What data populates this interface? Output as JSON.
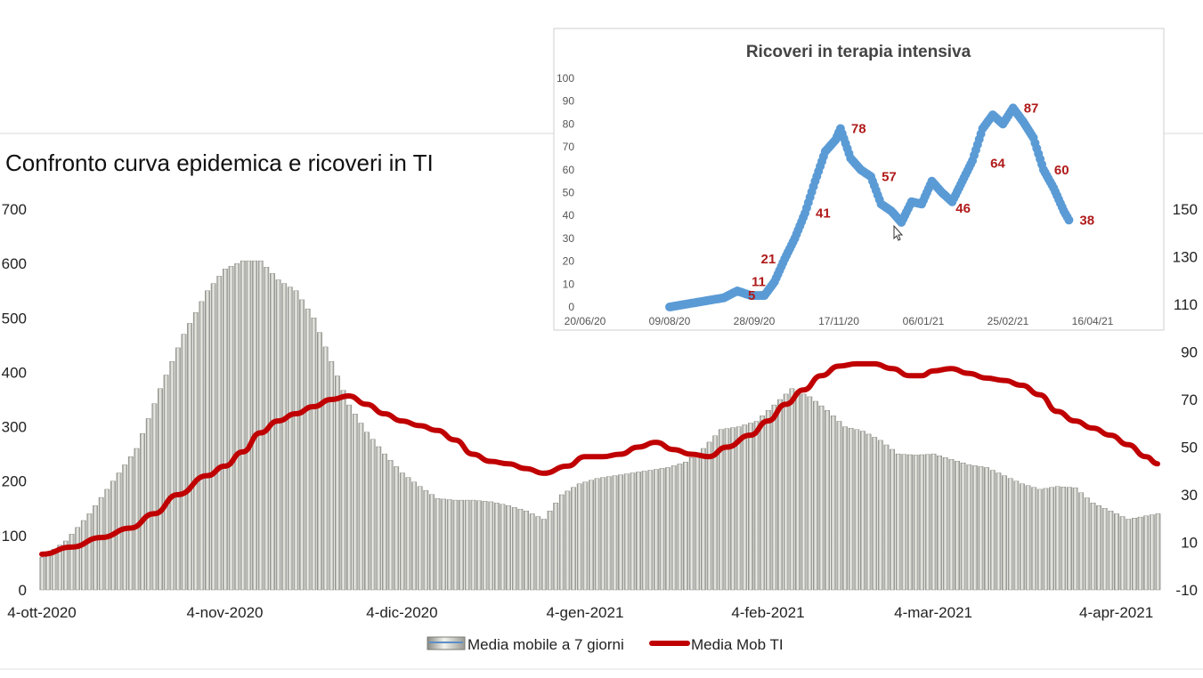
{
  "colors": {
    "bar_fill": "#c9c9c4",
    "bar_edge": "#7b7b75",
    "ti_line": "#c00000",
    "inset_points": "#5b9bd5",
    "inset_labels": "#b01a1a"
  },
  "chart_data": [
    {
      "type": "bar+line",
      "title": "Confronto curva epidemica e ricoveri in TI",
      "x_range": [
        "2020-10-04",
        "2021-04-11"
      ],
      "x_ticks": [
        {
          "date": "2020-10-04",
          "label": "4-ott-2020"
        },
        {
          "date": "2020-11-04",
          "label": "4-nov-2020"
        },
        {
          "date": "2020-12-04",
          "label": "4-dic-2020"
        },
        {
          "date": "2021-01-04",
          "label": "4-gen-2021"
        },
        {
          "date": "2021-02-04",
          "label": "4-feb-2021"
        },
        {
          "date": "2021-03-04",
          "label": "4-mar-2021"
        },
        {
          "date": "2021-04-04",
          "label": "4-apr-2021"
        }
      ],
      "y_left": {
        "min": 0,
        "max": 700,
        "ticks": [
          0,
          100,
          200,
          300,
          400,
          500,
          600,
          700
        ]
      },
      "y_right": {
        "min": -10,
        "max": 150,
        "ticks": [
          -10,
          10,
          30,
          50,
          70,
          90,
          110,
          130,
          150
        ]
      },
      "legend": {
        "position": "bottom"
      },
      "series": [
        {
          "name": "Media mobile a 7 giorni",
          "type": "bar",
          "axis": "left",
          "points": [
            [
              "2020-10-04",
              60
            ],
            [
              "2020-10-08",
              90
            ],
            [
              "2020-10-12",
              140
            ],
            [
              "2020-10-16",
              200
            ],
            [
              "2020-10-20",
              260
            ],
            [
              "2020-10-24",
              370
            ],
            [
              "2020-10-28",
              470
            ],
            [
              "2020-11-01",
              550
            ],
            [
              "2020-11-04",
              590
            ],
            [
              "2020-11-07",
              605
            ],
            [
              "2020-11-10",
              605
            ],
            [
              "2020-11-13",
              570
            ],
            [
              "2020-11-16",
              550
            ],
            [
              "2020-11-19",
              500
            ],
            [
              "2020-11-22",
              420
            ],
            [
              "2020-11-25",
              340
            ],
            [
              "2020-11-28",
              290
            ],
            [
              "2020-12-01",
              250
            ],
            [
              "2020-12-04",
              215
            ],
            [
              "2020-12-07",
              190
            ],
            [
              "2020-12-10",
              168
            ],
            [
              "2020-12-13",
              165
            ],
            [
              "2020-12-16",
              165
            ],
            [
              "2020-12-19",
              162
            ],
            [
              "2020-12-22",
              155
            ],
            [
              "2020-12-25",
              145
            ],
            [
              "2020-12-28",
              130
            ],
            [
              "2020-12-31",
              175
            ],
            [
              "2021-01-03",
              195
            ],
            [
              "2021-01-06",
              205
            ],
            [
              "2021-01-09",
              210
            ],
            [
              "2021-01-12",
              215
            ],
            [
              "2021-01-15",
              220
            ],
            [
              "2021-01-18",
              225
            ],
            [
              "2021-01-21",
              235
            ],
            [
              "2021-01-24",
              260
            ],
            [
              "2021-01-27",
              295
            ],
            [
              "2021-01-30",
              300
            ],
            [
              "2021-02-02",
              310
            ],
            [
              "2021-02-05",
              340
            ],
            [
              "2021-02-08",
              370
            ],
            [
              "2021-02-11",
              355
            ],
            [
              "2021-02-14",
              330
            ],
            [
              "2021-02-17",
              300
            ],
            [
              "2021-02-20",
              292
            ],
            [
              "2021-02-23",
              275
            ],
            [
              "2021-02-26",
              250
            ],
            [
              "2021-03-01",
              248
            ],
            [
              "2021-03-04",
              250
            ],
            [
              "2021-03-07",
              240
            ],
            [
              "2021-03-10",
              230
            ],
            [
              "2021-03-13",
              225
            ],
            [
              "2021-03-16",
              210
            ],
            [
              "2021-03-19",
              195
            ],
            [
              "2021-03-22",
              185
            ],
            [
              "2021-03-25",
              190
            ],
            [
              "2021-03-28",
              188
            ],
            [
              "2021-03-31",
              160
            ],
            [
              "2021-04-03",
              145
            ],
            [
              "2021-04-06",
              130
            ],
            [
              "2021-04-11",
              140
            ]
          ]
        },
        {
          "name": "Media Mob TI",
          "type": "line",
          "axis": "right",
          "points": [
            [
              "2020-10-04",
              5
            ],
            [
              "2020-10-09",
              8
            ],
            [
              "2020-10-14",
              12
            ],
            [
              "2020-10-19",
              16
            ],
            [
              "2020-10-23",
              22
            ],
            [
              "2020-10-27",
              30
            ],
            [
              "2020-11-01",
              38
            ],
            [
              "2020-11-04",
              42
            ],
            [
              "2020-11-07",
              48
            ],
            [
              "2020-11-10",
              56
            ],
            [
              "2020-11-13",
              61
            ],
            [
              "2020-11-16",
              64
            ],
            [
              "2020-11-19",
              67
            ],
            [
              "2020-11-22",
              70
            ],
            [
              "2020-11-25",
              71.5
            ],
            [
              "2020-11-28",
              68
            ],
            [
              "2020-12-01",
              64
            ],
            [
              "2020-12-04",
              61
            ],
            [
              "2020-12-07",
              59
            ],
            [
              "2020-12-10",
              57
            ],
            [
              "2020-12-13",
              53
            ],
            [
              "2020-12-16",
              47
            ],
            [
              "2020-12-19",
              44
            ],
            [
              "2020-12-22",
              43
            ],
            [
              "2020-12-25",
              41
            ],
            [
              "2020-12-28",
              39
            ],
            [
              "2021-01-01",
              42
            ],
            [
              "2021-01-04",
              46
            ],
            [
              "2021-01-07",
              46
            ],
            [
              "2021-01-10",
              47
            ],
            [
              "2021-01-13",
              50
            ],
            [
              "2021-01-16",
              52
            ],
            [
              "2021-01-19",
              49
            ],
            [
              "2021-01-22",
              47
            ],
            [
              "2021-01-25",
              46
            ],
            [
              "2021-01-28",
              50
            ],
            [
              "2021-02-01",
              55
            ],
            [
              "2021-02-04",
              61
            ],
            [
              "2021-02-07",
              68
            ],
            [
              "2021-02-10",
              74
            ],
            [
              "2021-02-13",
              80
            ],
            [
              "2021-02-16",
              84
            ],
            [
              "2021-02-19",
              85
            ],
            [
              "2021-02-22",
              85
            ],
            [
              "2021-02-25",
              83
            ],
            [
              "2021-02-28",
              80
            ],
            [
              "2021-03-02",
              80
            ],
            [
              "2021-03-04",
              82
            ],
            [
              "2021-03-07",
              83
            ],
            [
              "2021-03-10",
              81
            ],
            [
              "2021-03-13",
              79
            ],
            [
              "2021-03-16",
              78
            ],
            [
              "2021-03-19",
              76
            ],
            [
              "2021-03-22",
              72
            ],
            [
              "2021-03-25",
              65
            ],
            [
              "2021-03-28",
              61
            ],
            [
              "2021-03-31",
              58
            ],
            [
              "2021-04-03",
              55
            ],
            [
              "2021-04-06",
              51
            ],
            [
              "2021-04-09",
              46
            ],
            [
              "2021-04-11",
              43
            ]
          ]
        }
      ]
    },
    {
      "type": "scatter",
      "title": "Ricoveri in terapia intensiva",
      "x_range": [
        "2020-06-20",
        "2021-04-16"
      ],
      "x_ticks": [
        "20/06/20",
        "09/08/20",
        "28/09/20",
        "17/11/20",
        "06/01/21",
        "25/02/21",
        "16/04/21"
      ],
      "x_tick_dates": [
        "2020-06-20",
        "2020-08-09",
        "2020-09-28",
        "2020-11-17",
        "2021-01-06",
        "2021-02-25",
        "2021-04-16"
      ],
      "y_range": [
        0,
        100
      ],
      "y_ticks": [
        0,
        10,
        20,
        30,
        40,
        50,
        60,
        70,
        80,
        90,
        100
      ],
      "series": [
        {
          "points": [
            [
              "2020-08-09",
              0
            ],
            [
              "2020-08-17",
              1
            ],
            [
              "2020-08-25",
              2
            ],
            [
              "2020-09-02",
              3
            ],
            [
              "2020-09-10",
              4
            ],
            [
              "2020-09-18",
              7
            ],
            [
              "2020-09-26",
              5
            ],
            [
              "2020-10-04",
              5
            ],
            [
              "2020-10-10",
              11
            ],
            [
              "2020-10-16",
              21
            ],
            [
              "2020-10-22",
              30
            ],
            [
              "2020-10-28",
              41
            ],
            [
              "2020-11-03",
              55
            ],
            [
              "2020-11-09",
              68
            ],
            [
              "2020-11-15",
              73
            ],
            [
              "2020-11-18",
              78
            ],
            [
              "2020-11-24",
              65
            ],
            [
              "2020-11-30",
              60
            ],
            [
              "2020-12-06",
              57
            ],
            [
              "2020-12-12",
              45
            ],
            [
              "2020-12-18",
              42
            ],
            [
              "2020-12-24",
              37
            ],
            [
              "2020-12-30",
              46
            ],
            [
              "2021-01-05",
              45
            ],
            [
              "2021-01-11",
              55
            ],
            [
              "2021-01-17",
              50
            ],
            [
              "2021-01-23",
              46
            ],
            [
              "2021-01-29",
              55
            ],
            [
              "2021-02-04",
              64
            ],
            [
              "2021-02-10",
              78
            ],
            [
              "2021-02-16",
              84
            ],
            [
              "2021-02-22",
              80
            ],
            [
              "2021-02-28",
              87
            ],
            [
              "2021-03-06",
              81
            ],
            [
              "2021-03-12",
              74
            ],
            [
              "2021-03-18",
              60
            ],
            [
              "2021-03-24",
              52
            ],
            [
              "2021-03-30",
              42
            ],
            [
              "2021-04-02",
              38
            ]
          ]
        }
      ],
      "annotations": [
        {
          "text": "5",
          "date": "2020-10-04",
          "value": 5
        },
        {
          "text": "11",
          "date": "2020-10-10",
          "value": 11
        },
        {
          "text": "21",
          "date": "2020-10-16",
          "value": 21
        },
        {
          "text": "41",
          "date": "2020-10-28",
          "value": 41
        },
        {
          "text": "78",
          "date": "2020-11-18",
          "value": 78
        },
        {
          "text": "57",
          "date": "2020-12-06",
          "value": 57
        },
        {
          "text": "46",
          "date": "2021-01-23",
          "value": 46
        },
        {
          "text": "64",
          "date": "2021-02-04",
          "value": 64
        },
        {
          "text": "87",
          "date": "2021-02-28",
          "value": 87
        },
        {
          "text": "60",
          "date": "2021-03-18",
          "value": 60
        },
        {
          "text": "38",
          "date": "2021-04-02",
          "value": 38
        }
      ]
    }
  ]
}
